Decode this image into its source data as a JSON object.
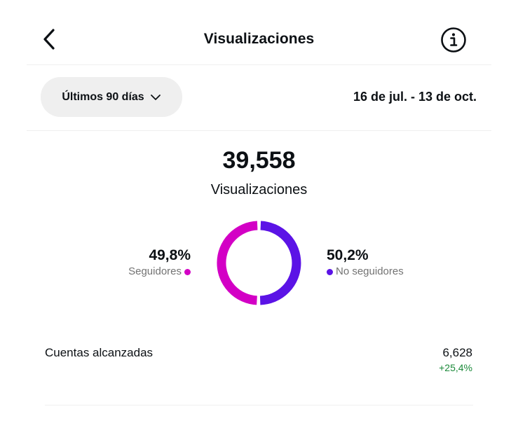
{
  "header": {
    "title": "Visualizaciones",
    "back_icon": "chevron-left-icon",
    "info_icon": "info-circle-icon"
  },
  "filter": {
    "range_label": "Últimos 90 días",
    "dropdown_icon": "chevron-down-icon",
    "date_range": "16 de jul. - 13 de oct."
  },
  "summary": {
    "total": "39,558",
    "label": "Visualizaciones"
  },
  "breakdown": {
    "followers": {
      "percent": "49,8%",
      "label": "Seguidores",
      "value": 49.8,
      "color": "#d300c5"
    },
    "non_followers": {
      "percent": "50,2%",
      "label": "No seguidores",
      "value": 50.2,
      "color": "#5b13e6"
    }
  },
  "metrics": {
    "accounts_reached": {
      "label": "Cuentas alcanzadas",
      "value": "6,628",
      "change": "+25,4%",
      "change_color": "#1c8a3a"
    }
  }
}
